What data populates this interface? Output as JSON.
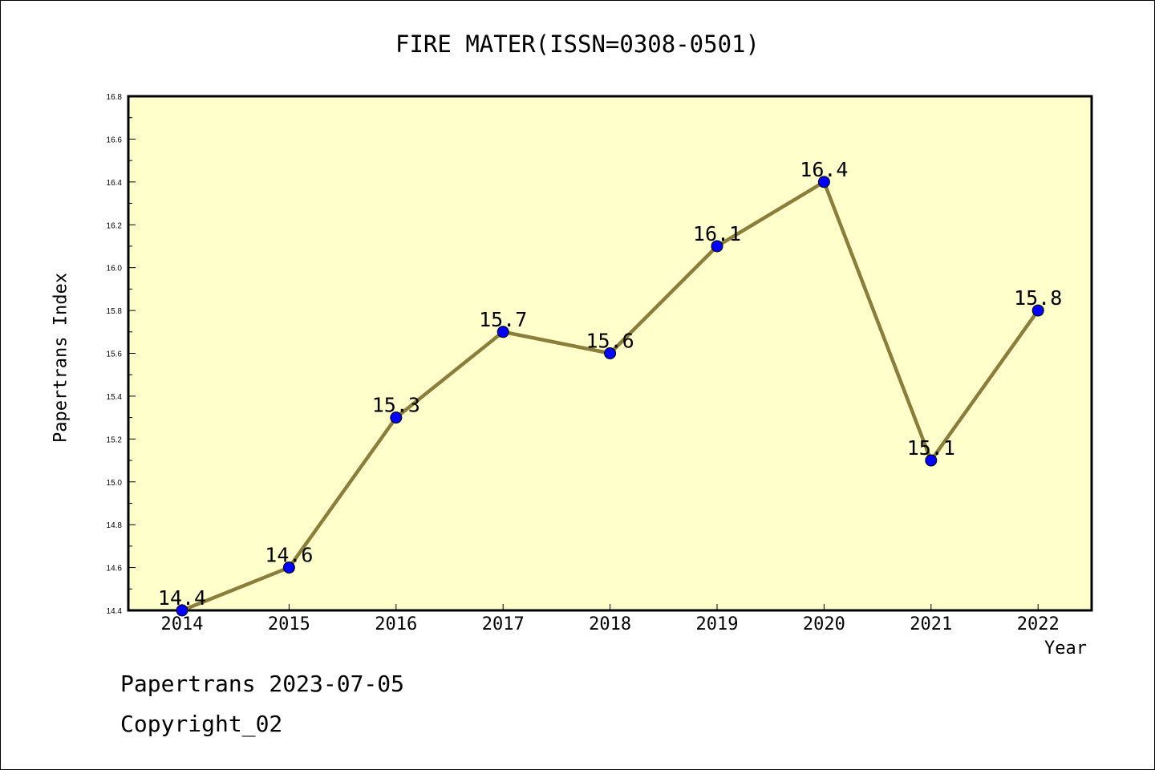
{
  "title": "FIRE MATER(ISSN=0308-0501)",
  "footer": {
    "date_line": "Papertrans 2023-07-05",
    "copyright_line": "Copyright_02"
  },
  "colors": {
    "plot_background": "#ffffcc",
    "line": "#8b7d3a",
    "marker": "#0000ff"
  },
  "chart_data": {
    "type": "line",
    "title": "FIRE MATER(ISSN=0308-0501)",
    "xlabel": "Year",
    "ylabel": "Papertrans Index",
    "x": [
      "2014",
      "2015",
      "2016",
      "2017",
      "2018",
      "2019",
      "2020",
      "2021",
      "2022"
    ],
    "series": [
      {
        "values": [
          14.4,
          14.6,
          15.3,
          15.7,
          15.6,
          16.1,
          16.4,
          15.1,
          15.8
        ],
        "data_labels": [
          "14.4",
          "14.6",
          "15.3",
          "15.7",
          "15.6",
          "16.1",
          "16.4",
          "15.1",
          "15.8"
        ]
      }
    ],
    "ylim": [
      14.4,
      16.8
    ],
    "yticks": [
      "14.4",
      "14.6",
      "14.8",
      "15.0",
      "15.2",
      "15.4",
      "15.6",
      "15.8",
      "16.0",
      "16.2",
      "16.4",
      "16.6",
      "16.8"
    ],
    "grid": false,
    "legend": "none"
  }
}
